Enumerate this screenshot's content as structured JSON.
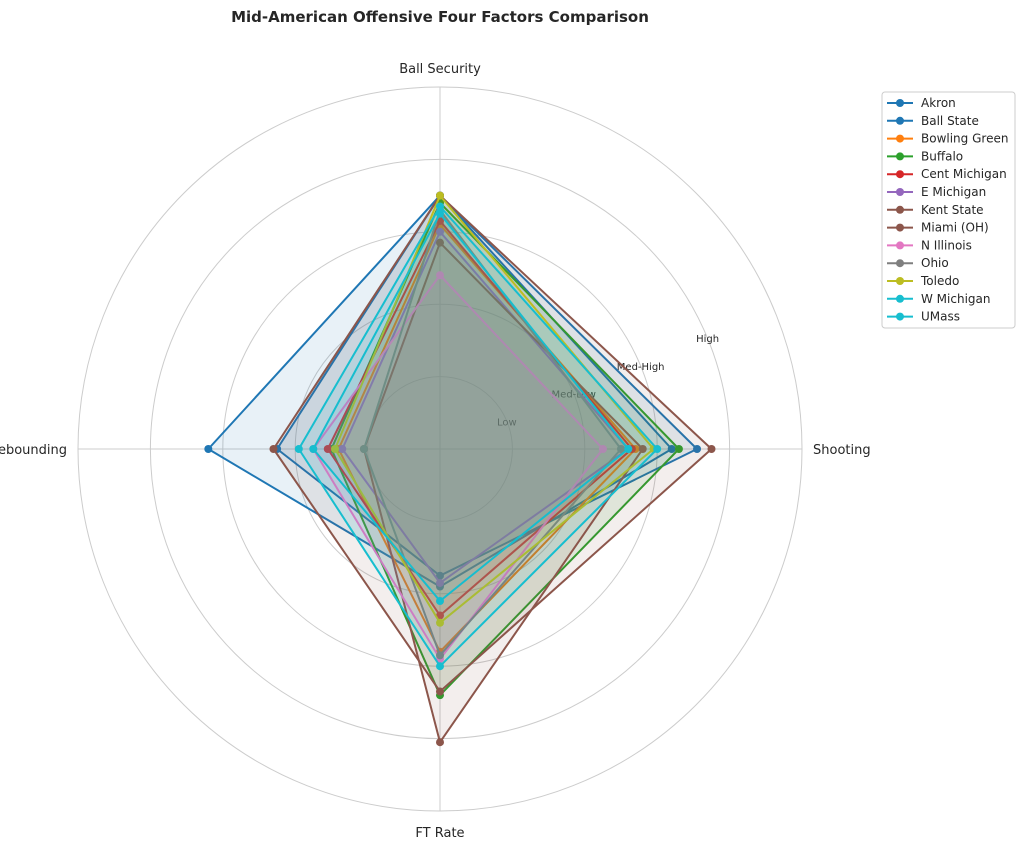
{
  "chart_data": {
    "type": "radar",
    "title": "Mid-American Offensive Four Factors Comparison",
    "axes": [
      "Shooting",
      "Ball Security",
      "Off Rebounding",
      "FT Rate"
    ],
    "ring_labels": [
      "Low",
      "Med-Low",
      "Med-High",
      "High"
    ],
    "rmax": 5,
    "grid": true,
    "legend_position": "right",
    "series": [
      {
        "name": "Akron",
        "color": "#1f77b4",
        "values": [
          3.2,
          3.5,
          3.2,
          1.9
        ]
      },
      {
        "name": "Ball State",
        "color": "#1f77b4",
        "values": [
          3.55,
          3.5,
          2.25,
          1.75
        ]
      },
      {
        "name": "Bowling Green",
        "color": "#ff7f0e",
        "values": [
          2.7,
          3.1,
          1.4,
          2.8
        ]
      },
      {
        "name": "Buffalo",
        "color": "#2ca02c",
        "values": [
          3.3,
          3.4,
          1.5,
          3.4
        ]
      },
      {
        "name": "Cent Michigan",
        "color": "#d62728",
        "values": [
          2.65,
          3.15,
          1.55,
          2.3
        ]
      },
      {
        "name": "E Michigan",
        "color": "#9467bd",
        "values": [
          2.6,
          3.0,
          1.35,
          1.85
        ]
      },
      {
        "name": "Kent State",
        "color": "#8c564b",
        "values": [
          3.75,
          3.5,
          2.3,
          3.35
        ]
      },
      {
        "name": "Miami (OH)",
        "color": "#8c564b",
        "values": [
          2.8,
          2.85,
          1.05,
          4.05
        ]
      },
      {
        "name": "N Illinois",
        "color": "#e377c2",
        "values": [
          2.25,
          2.4,
          1.75,
          2.9
        ]
      },
      {
        "name": "Ohio",
        "color": "#7f7f7f",
        "values": [
          2.5,
          3.3,
          1.05,
          2.85
        ]
      },
      {
        "name": "Toledo",
        "color": "#bcbd22",
        "values": [
          2.95,
          3.5,
          1.45,
          2.4
        ]
      },
      {
        "name": "W Michigan",
        "color": "#17becf",
        "values": [
          2.6,
          3.25,
          1.75,
          2.1
        ]
      },
      {
        "name": "UMass",
        "color": "#17becf",
        "values": [
          3.0,
          3.35,
          1.95,
          3.0
        ]
      }
    ]
  }
}
